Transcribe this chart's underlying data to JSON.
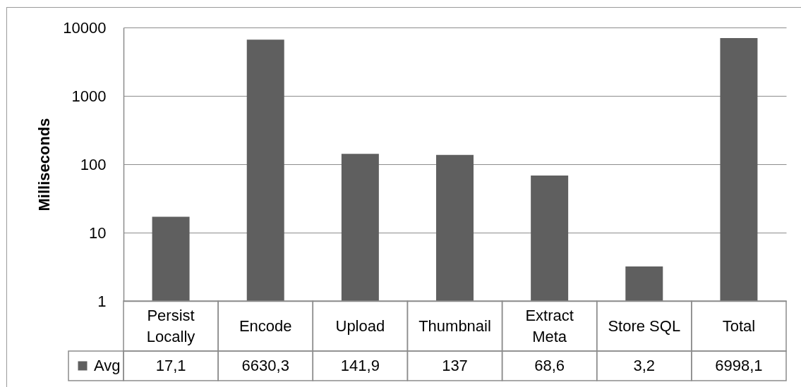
{
  "chart_data": {
    "type": "bar",
    "categories": [
      "Persist Locally",
      "Encode",
      "Upload",
      "Thumbnail",
      "Extract Meta",
      "Store SQL",
      "Total"
    ],
    "series": [
      {
        "name": "Avg",
        "color": "#5f5f5f",
        "values": [
          17.1,
          6630.3,
          141.9,
          137,
          68.6,
          3.2,
          6998.1
        ],
        "value_labels": [
          "17,1",
          "6630,3",
          "141,9",
          "137",
          "68,6",
          "3,2",
          "6998,1"
        ]
      }
    ],
    "ylabel": "Milliseconds",
    "log": true,
    "ylim": [
      1,
      10000
    ],
    "yticks": [
      1,
      10,
      100,
      1000,
      10000
    ],
    "grid": "y",
    "legend": "bottom left"
  }
}
